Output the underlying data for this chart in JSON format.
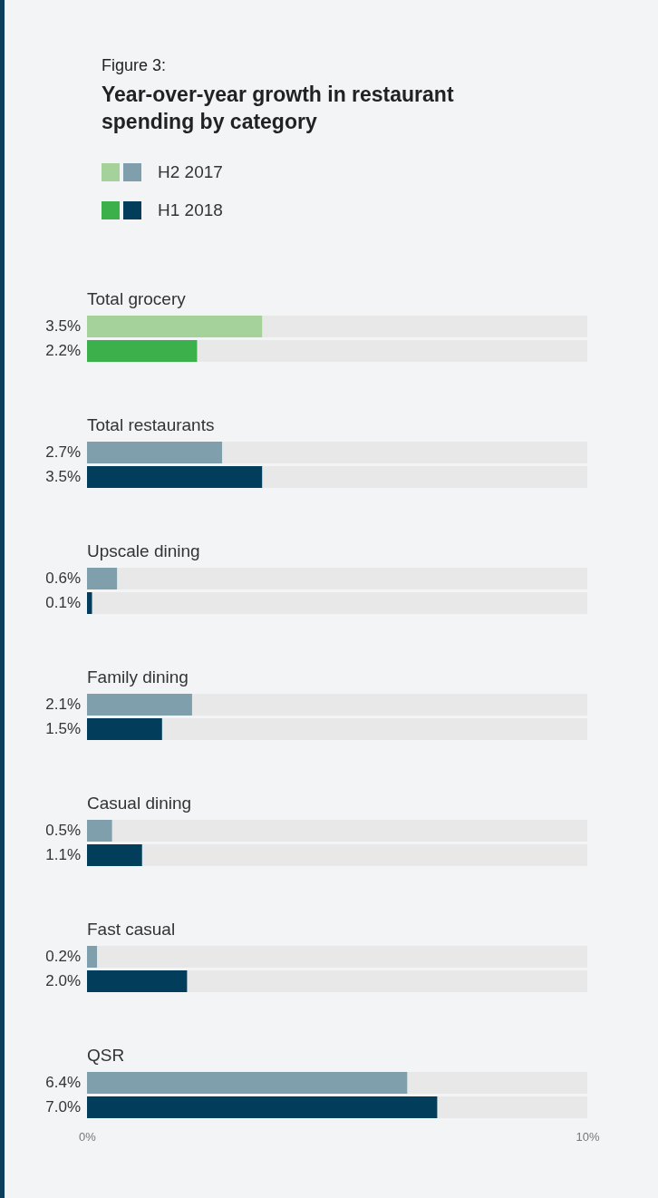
{
  "chart_data": {
    "type": "bar",
    "orientation": "horizontal",
    "subtitle": "Figure 3:",
    "title": "Year-over-year growth in restaurant spending by category",
    "categories": [
      "Total grocery",
      "Total restaurants",
      "Upscale dining",
      "Family dining",
      "Casual dining",
      "Fast casual",
      "QSR"
    ],
    "series": [
      {
        "name": "H2 2017",
        "colors": [
          "#a5d19a",
          "#7f9fad",
          "#7f9fad",
          "#7f9fad",
          "#7f9fad",
          "#7f9fad",
          "#7f9fad"
        ],
        "values": [
          3.5,
          2.7,
          0.6,
          2.1,
          0.5,
          0.2,
          6.4
        ],
        "value_labels": [
          "3.5%",
          "2.7%",
          "0.6%",
          "2.1%",
          "0.5%",
          "0.2%",
          "6.4%"
        ]
      },
      {
        "name": "H1 2018",
        "colors": [
          "#3cb04a",
          "#033d5c",
          "#033d5c",
          "#033d5c",
          "#033d5c",
          "#033d5c",
          "#033d5c"
        ],
        "values": [
          2.2,
          3.5,
          0.1,
          1.5,
          1.1,
          2.0,
          7.0
        ],
        "value_labels": [
          "2.2%",
          "3.5%",
          "0.1%",
          "1.5%",
          "1.1%",
          "2.0%",
          "7.0%"
        ]
      }
    ],
    "xlim": [
      0,
      10
    ],
    "xticks": [
      {
        "value": 0,
        "label": "0%"
      },
      {
        "value": 10,
        "label": "10%"
      }
    ],
    "legend": "top left",
    "grid": false
  }
}
